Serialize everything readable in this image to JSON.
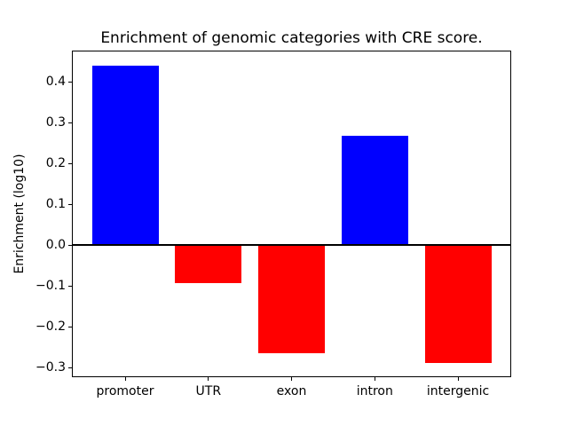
{
  "figure": {
    "background": "#ffffff"
  },
  "chart_data": {
    "type": "bar",
    "title": "Enrichment of genomic categories with CRE score.",
    "ylabel": "Enrichment (log10)",
    "xlabel": "",
    "categories": [
      "promoter",
      "UTR",
      "exon",
      "intron",
      "intergenic"
    ],
    "values": [
      0.44,
      -0.093,
      -0.266,
      0.267,
      -0.288
    ],
    "bar_colors": [
      "#0000ff",
      "#ff0000",
      "#ff0000",
      "#0000ff",
      "#ff0000"
    ],
    "positive_color": "#0000ff",
    "negative_color": "#ff0000",
    "ylim": [
      -0.324,
      0.476
    ],
    "ytick_values": [
      0.4,
      0.3,
      0.2,
      0.1,
      0.0,
      -0.1,
      -0.2,
      -0.3
    ],
    "ytick_labels": [
      "0.4",
      "0.3",
      "0.2",
      "0.1",
      "0.0",
      "−0.1",
      "−0.2",
      "−0.3"
    ],
    "zero_line": 0,
    "bar_width_fraction": 0.8,
    "x_margin_units": 0.64,
    "grid": false,
    "legend_position": "none",
    "axis_color": "#000000",
    "text_color": "#000000"
  }
}
